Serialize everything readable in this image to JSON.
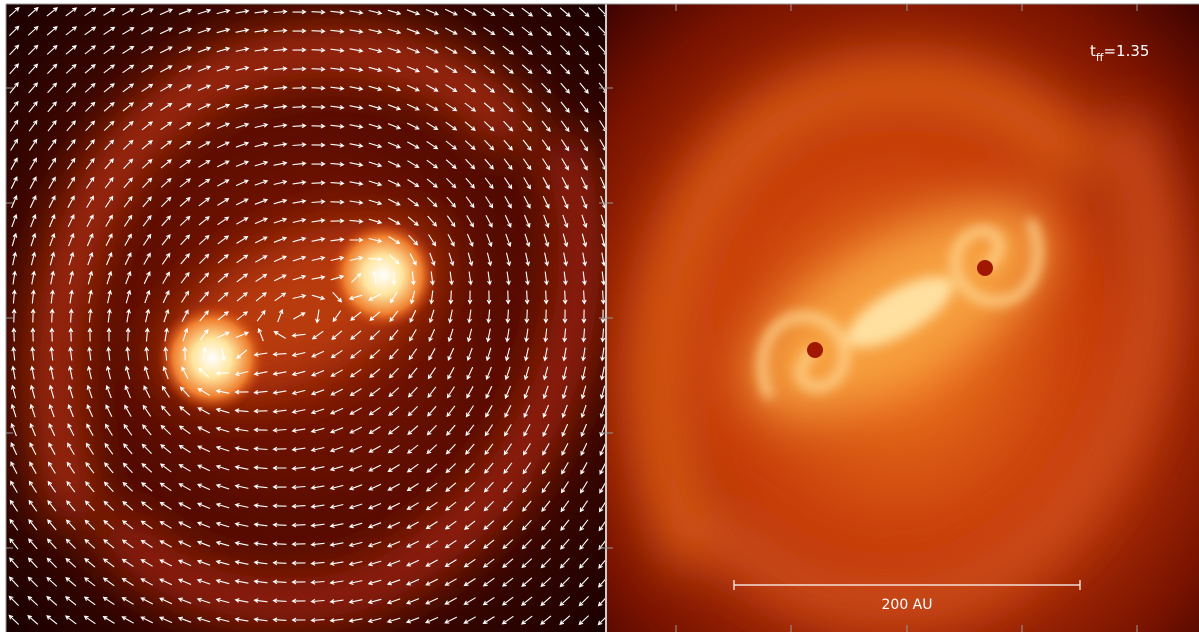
{
  "right_panel": {
    "time_label": {
      "symbol": "t",
      "subscript": "ff",
      "value": "=1.35"
    },
    "scale_bar": {
      "label": "200 AU"
    }
  }
}
